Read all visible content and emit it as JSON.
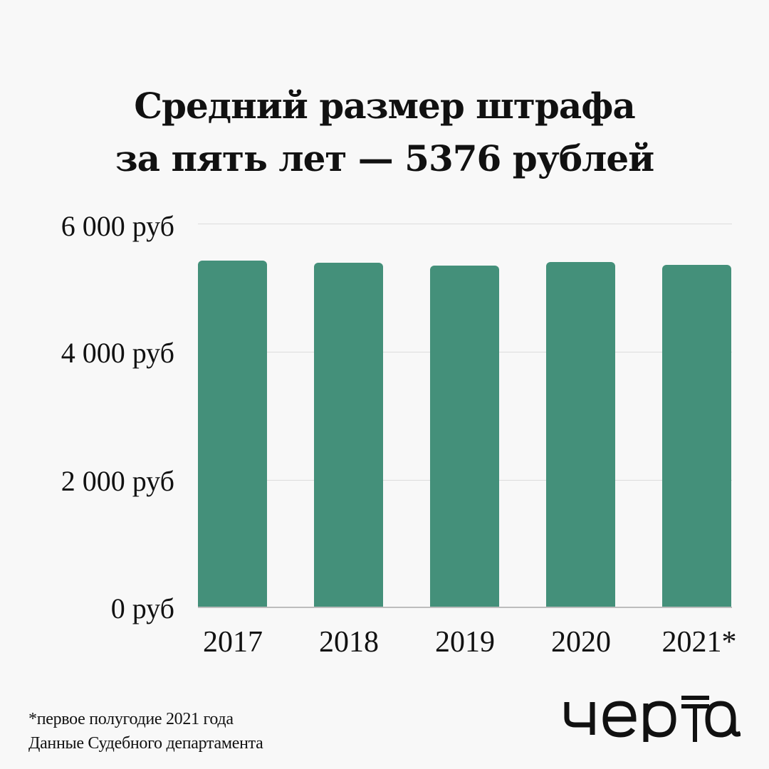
{
  "header": {
    "title_line1": "Средний размер штрафа",
    "title_line2": "за пять лет — 5376 рублей"
  },
  "axis": {
    "y_ticks": [
      "6 000 руб",
      "4 000 руб",
      "2 000 руб",
      "0 руб"
    ],
    "x_ticks": [
      "2017",
      "2018",
      "2019",
      "2020",
      "2021*"
    ]
  },
  "footer": {
    "note": "*первое полугодие 2021 года",
    "source": "Данные Судебного департамента"
  },
  "logo": {
    "text": "черта"
  },
  "colors": {
    "bar": "#44907a",
    "background": "#f8f8f8",
    "grid": "#dcdcdc"
  },
  "chart_data": {
    "type": "bar",
    "title": "Средний размер штрафа за пять лет — 5376 рублей",
    "categories": [
      "2017",
      "2018",
      "2019",
      "2020",
      "2021*"
    ],
    "values": [
      5420,
      5390,
      5345,
      5400,
      5355
    ],
    "xlabel": "",
    "ylabel": "руб",
    "ylim": [
      0,
      6000
    ],
    "yticks": [
      0,
      2000,
      4000,
      6000
    ],
    "grid": true,
    "legend": null,
    "annotations": [
      "*первое полугодие 2021 года",
      "Данные Судебного департамента"
    ]
  }
}
